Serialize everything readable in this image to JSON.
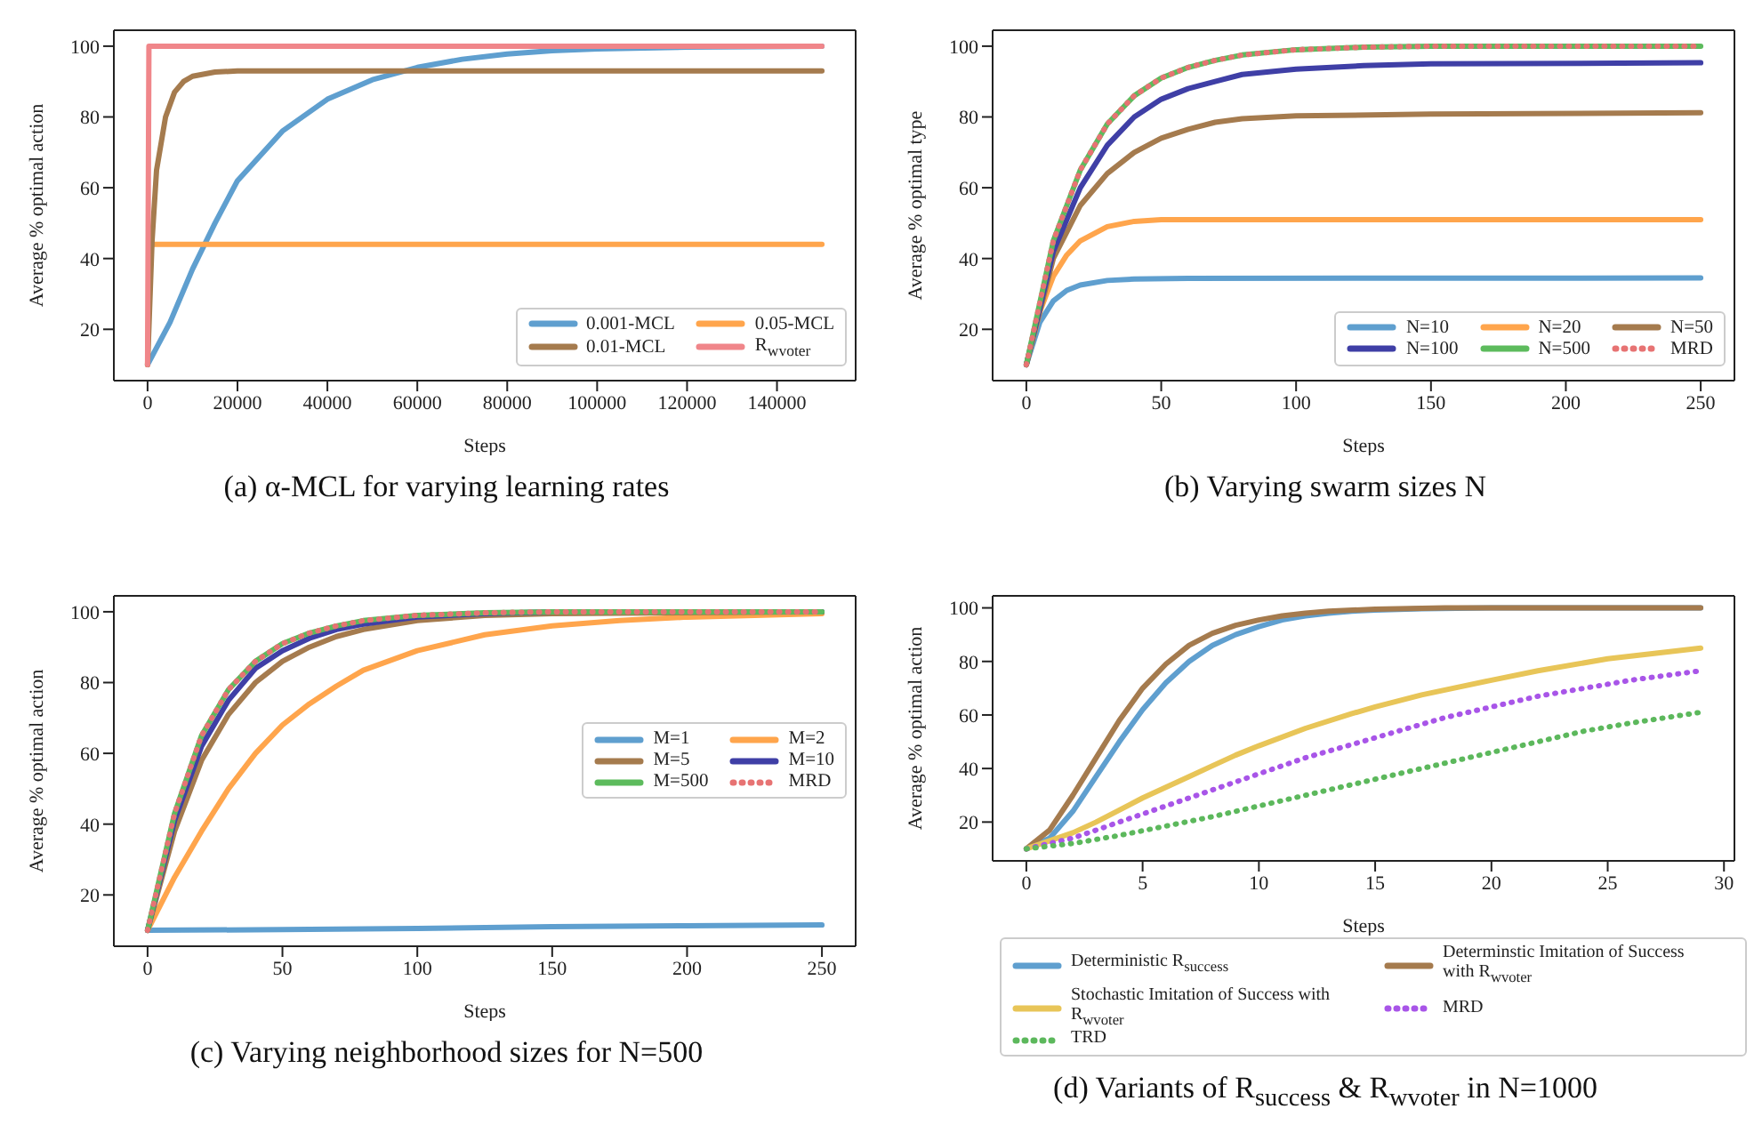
{
  "chart_data": [
    {
      "type": "line",
      "title": "(a) α-MCL for varying learning rates",
      "xlabel": "Steps",
      "ylabel": "Average % optimal action",
      "xlim": [
        -7500,
        157500
      ],
      "xticks": [
        0,
        20000,
        40000,
        60000,
        80000,
        100000,
        120000,
        140000
      ],
      "ylim": [
        5.5,
        104.5
      ],
      "yticks": [
        20,
        40,
        60,
        80,
        100
      ],
      "legend": "bottom right",
      "series": [
        {
          "name": "0.001-MCL",
          "color": "#5f9fcf",
          "x": [
            0,
            5000,
            10000,
            15000,
            20000,
            30000,
            40000,
            50000,
            60000,
            70000,
            80000,
            90000,
            100000,
            120000,
            150000
          ],
          "values": [
            10,
            22,
            37,
            50,
            62,
            76,
            85,
            90.5,
            94,
            96.3,
            97.8,
            98.7,
            99.2,
            99.7,
            100
          ]
        },
        {
          "name": "0.05-MCL",
          "color": "#ffa54c",
          "x": [
            0,
            500,
            150000
          ],
          "values": [
            10,
            44,
            44
          ]
        },
        {
          "name": "0.01-MCL",
          "color": "#a57b4e",
          "x": [
            0,
            1000,
            2000,
            4000,
            6000,
            8000,
            10000,
            15000,
            20000,
            150000
          ],
          "values": [
            10,
            45,
            65,
            80,
            87,
            90,
            91.5,
            92.7,
            93,
            93
          ]
        },
        {
          "name": "R$_{wvoter}$",
          "color": "#f0868a",
          "x": [
            0,
            300,
            150000
          ],
          "values": [
            10,
            100,
            100
          ]
        }
      ]
    },
    {
      "type": "line",
      "title": "(b) Varying swarm sizes N",
      "xlabel": "Steps",
      "ylabel": "Average % optimal type",
      "xlim": [
        -12.5,
        262.5
      ],
      "xticks": [
        0,
        50,
        100,
        150,
        200,
        250
      ],
      "ylim": [
        5.5,
        104.5
      ],
      "yticks": [
        20,
        40,
        60,
        80,
        100
      ],
      "legend": "bottom right",
      "series": [
        {
          "name": "N=10",
          "color": "#5f9fcf",
          "x": [
            0,
            5,
            10,
            15,
            20,
            30,
            40,
            60,
            250
          ],
          "values": [
            10,
            22,
            28,
            31,
            32.5,
            33.8,
            34.2,
            34.4,
            34.5
          ]
        },
        {
          "name": "N=20",
          "color": "#ffa54c",
          "x": [
            0,
            5,
            10,
            15,
            20,
            30,
            40,
            50,
            100,
            250
          ],
          "values": [
            10,
            25,
            35,
            41,
            45,
            49,
            50.5,
            51,
            51,
            51
          ]
        },
        {
          "name": "N=50",
          "color": "#a57b4e",
          "x": [
            0,
            10,
            20,
            30,
            40,
            50,
            60,
            70,
            80,
            100,
            150,
            250
          ],
          "values": [
            10,
            40,
            55,
            64,
            70,
            74,
            76.5,
            78.5,
            79.5,
            80.3,
            80.8,
            81.2
          ]
        },
        {
          "name": "N=100",
          "color": "#3f3fa6",
          "x": [
            0,
            10,
            20,
            30,
            40,
            50,
            60,
            70,
            80,
            100,
            125,
            150,
            250
          ],
          "values": [
            10,
            42,
            60,
            72,
            80,
            85,
            88,
            90,
            92,
            93.5,
            94.5,
            95,
            95.3
          ]
        },
        {
          "name": "N=500",
          "color": "#5dbb5d",
          "x": [
            0,
            10,
            20,
            30,
            40,
            50,
            60,
            70,
            80,
            100,
            125,
            150,
            250
          ],
          "values": [
            10,
            45,
            65,
            78,
            86,
            91,
            94,
            96,
            97.5,
            99,
            99.7,
            100,
            100
          ]
        },
        {
          "name": "MRD",
          "color": "#e77373",
          "line_style": "dotted",
          "x": [
            0,
            10,
            20,
            30,
            40,
            50,
            60,
            70,
            80,
            100,
            125,
            150,
            250
          ],
          "values": [
            10,
            45,
            65,
            78,
            86,
            91,
            94,
            96,
            97.5,
            99,
            99.7,
            100,
            100
          ]
        }
      ]
    },
    {
      "type": "line",
      "title": "(c) Varying neighborhood sizes for N=500",
      "xlabel": "Steps",
      "ylabel": "Average % optimal action",
      "xlim": [
        -12.5,
        262.5
      ],
      "xticks": [
        0,
        50,
        100,
        150,
        200,
        250
      ],
      "ylim": [
        5.5,
        104.5
      ],
      "yticks": [
        20,
        40,
        60,
        80,
        100
      ],
      "legend": "right",
      "series": [
        {
          "name": "M=1",
          "color": "#5f9fcf",
          "x": [
            0,
            50,
            100,
            150,
            200,
            250
          ],
          "values": [
            10,
            10.2,
            10.5,
            11,
            11.3,
            11.5
          ]
        },
        {
          "name": "M=2",
          "color": "#ffa54c",
          "x": [
            0,
            10,
            20,
            30,
            40,
            50,
            60,
            70,
            80,
            100,
            125,
            150,
            175,
            200,
            250
          ],
          "values": [
            10,
            25,
            38,
            50,
            60,
            68,
            74,
            79,
            83.5,
            89,
            93.5,
            96,
            97.5,
            98.5,
            99.5
          ]
        },
        {
          "name": "M=5",
          "color": "#a57b4e",
          "x": [
            0,
            10,
            20,
            30,
            40,
            50,
            60,
            70,
            80,
            100,
            125,
            150,
            250
          ],
          "values": [
            10,
            38,
            58,
            71,
            80,
            86,
            90,
            93,
            95,
            97.5,
            99,
            99.5,
            100
          ]
        },
        {
          "name": "M=10",
          "color": "#3f3fa6",
          "x": [
            0,
            10,
            20,
            30,
            40,
            50,
            60,
            70,
            80,
            100,
            125,
            150,
            250
          ],
          "values": [
            10,
            41,
            62,
            75,
            84,
            89,
            92.5,
            95,
            96.5,
            98.5,
            99.5,
            100,
            100
          ]
        },
        {
          "name": "M=500",
          "color": "#5dbb5d",
          "x": [
            0,
            10,
            20,
            30,
            40,
            50,
            60,
            70,
            80,
            100,
            125,
            150,
            250
          ],
          "values": [
            10,
            43,
            65,
            78,
            86,
            91,
            94,
            96,
            97.5,
            99,
            99.7,
            100,
            100
          ]
        },
        {
          "name": "MRD",
          "color": "#e77373",
          "line_style": "dotted",
          "x": [
            0,
            10,
            20,
            30,
            40,
            50,
            60,
            70,
            80,
            100,
            125,
            150,
            250
          ],
          "values": [
            10,
            43,
            65,
            78,
            86,
            91,
            94,
            96,
            97.5,
            99,
            99.7,
            100,
            100
          ]
        }
      ]
    },
    {
      "type": "line",
      "title": "(d) Variants of R$_{success}$ & R$_{wvoter}$ in N=1000",
      "xlabel": "Steps",
      "ylabel": "Average % optimal action",
      "xlim": [
        -1.45,
        30.45
      ],
      "xticks": [
        0,
        5,
        10,
        15,
        20,
        25,
        30
      ],
      "ylim": [
        5.5,
        104.5
      ],
      "yticks": [
        20,
        40,
        60,
        80,
        100
      ],
      "legend": "bottom",
      "series": [
        {
          "name": "Deterministic R$_{success}$",
          "color": "#5f9fcf",
          "x": [
            0,
            1,
            2,
            3,
            4,
            5,
            6,
            7,
            8,
            9,
            10,
            11,
            12,
            13,
            14,
            15,
            17,
            20,
            29
          ],
          "values": [
            10,
            14,
            24,
            37,
            50,
            62,
            72,
            80,
            86,
            90,
            93,
            95.5,
            97,
            98,
            98.8,
            99.2,
            99.7,
            100,
            100
          ]
        },
        {
          "name": "Determinstic Imitation of Success with R$_{wvoter}$",
          "color": "#a57b4e",
          "x": [
            0,
            1,
            2,
            3,
            4,
            5,
            6,
            7,
            8,
            9,
            10,
            11,
            12,
            13,
            15,
            18,
            29
          ],
          "values": [
            10,
            17,
            30,
            44,
            58,
            70,
            79,
            86,
            90.5,
            93.5,
            95.5,
            97,
            98,
            98.8,
            99.5,
            100,
            100
          ]
        },
        {
          "name": "Stochastic Imitation of Success with R$_{wvoter}$",
          "color": "#e8c558",
          "x": [
            0,
            1,
            2,
            3,
            4,
            5,
            6,
            7,
            8,
            9,
            10,
            12,
            14,
            15,
            17,
            20,
            22,
            25,
            27,
            29
          ],
          "values": [
            10,
            13,
            16,
            20,
            24.5,
            29,
            33,
            37,
            41,
            45,
            48.5,
            55,
            60.5,
            63,
            67.5,
            73,
            76.5,
            81,
            83,
            85
          ]
        },
        {
          "name": "MRD",
          "color": "#a855e8",
          "line_style": "dotted",
          "x": [
            0,
            2,
            4,
            6,
            8,
            10,
            12,
            14,
            16,
            18,
            20,
            22,
            24,
            26,
            29
          ],
          "values": [
            10,
            14,
            20,
            26,
            32,
            38,
            44,
            49,
            54,
            59,
            63,
            67,
            70,
            73,
            76.5
          ]
        },
        {
          "name": "TRD",
          "color": "#5cb85c",
          "line_style": "dotted",
          "x": [
            0,
            2,
            4,
            6,
            8,
            10,
            12,
            14,
            16,
            18,
            20,
            22,
            24,
            26,
            29
          ],
          "values": [
            10,
            12,
            15,
            18.5,
            22,
            26,
            30,
            34,
            38,
            42,
            46,
            50,
            54,
            57,
            61
          ]
        }
      ]
    }
  ]
}
